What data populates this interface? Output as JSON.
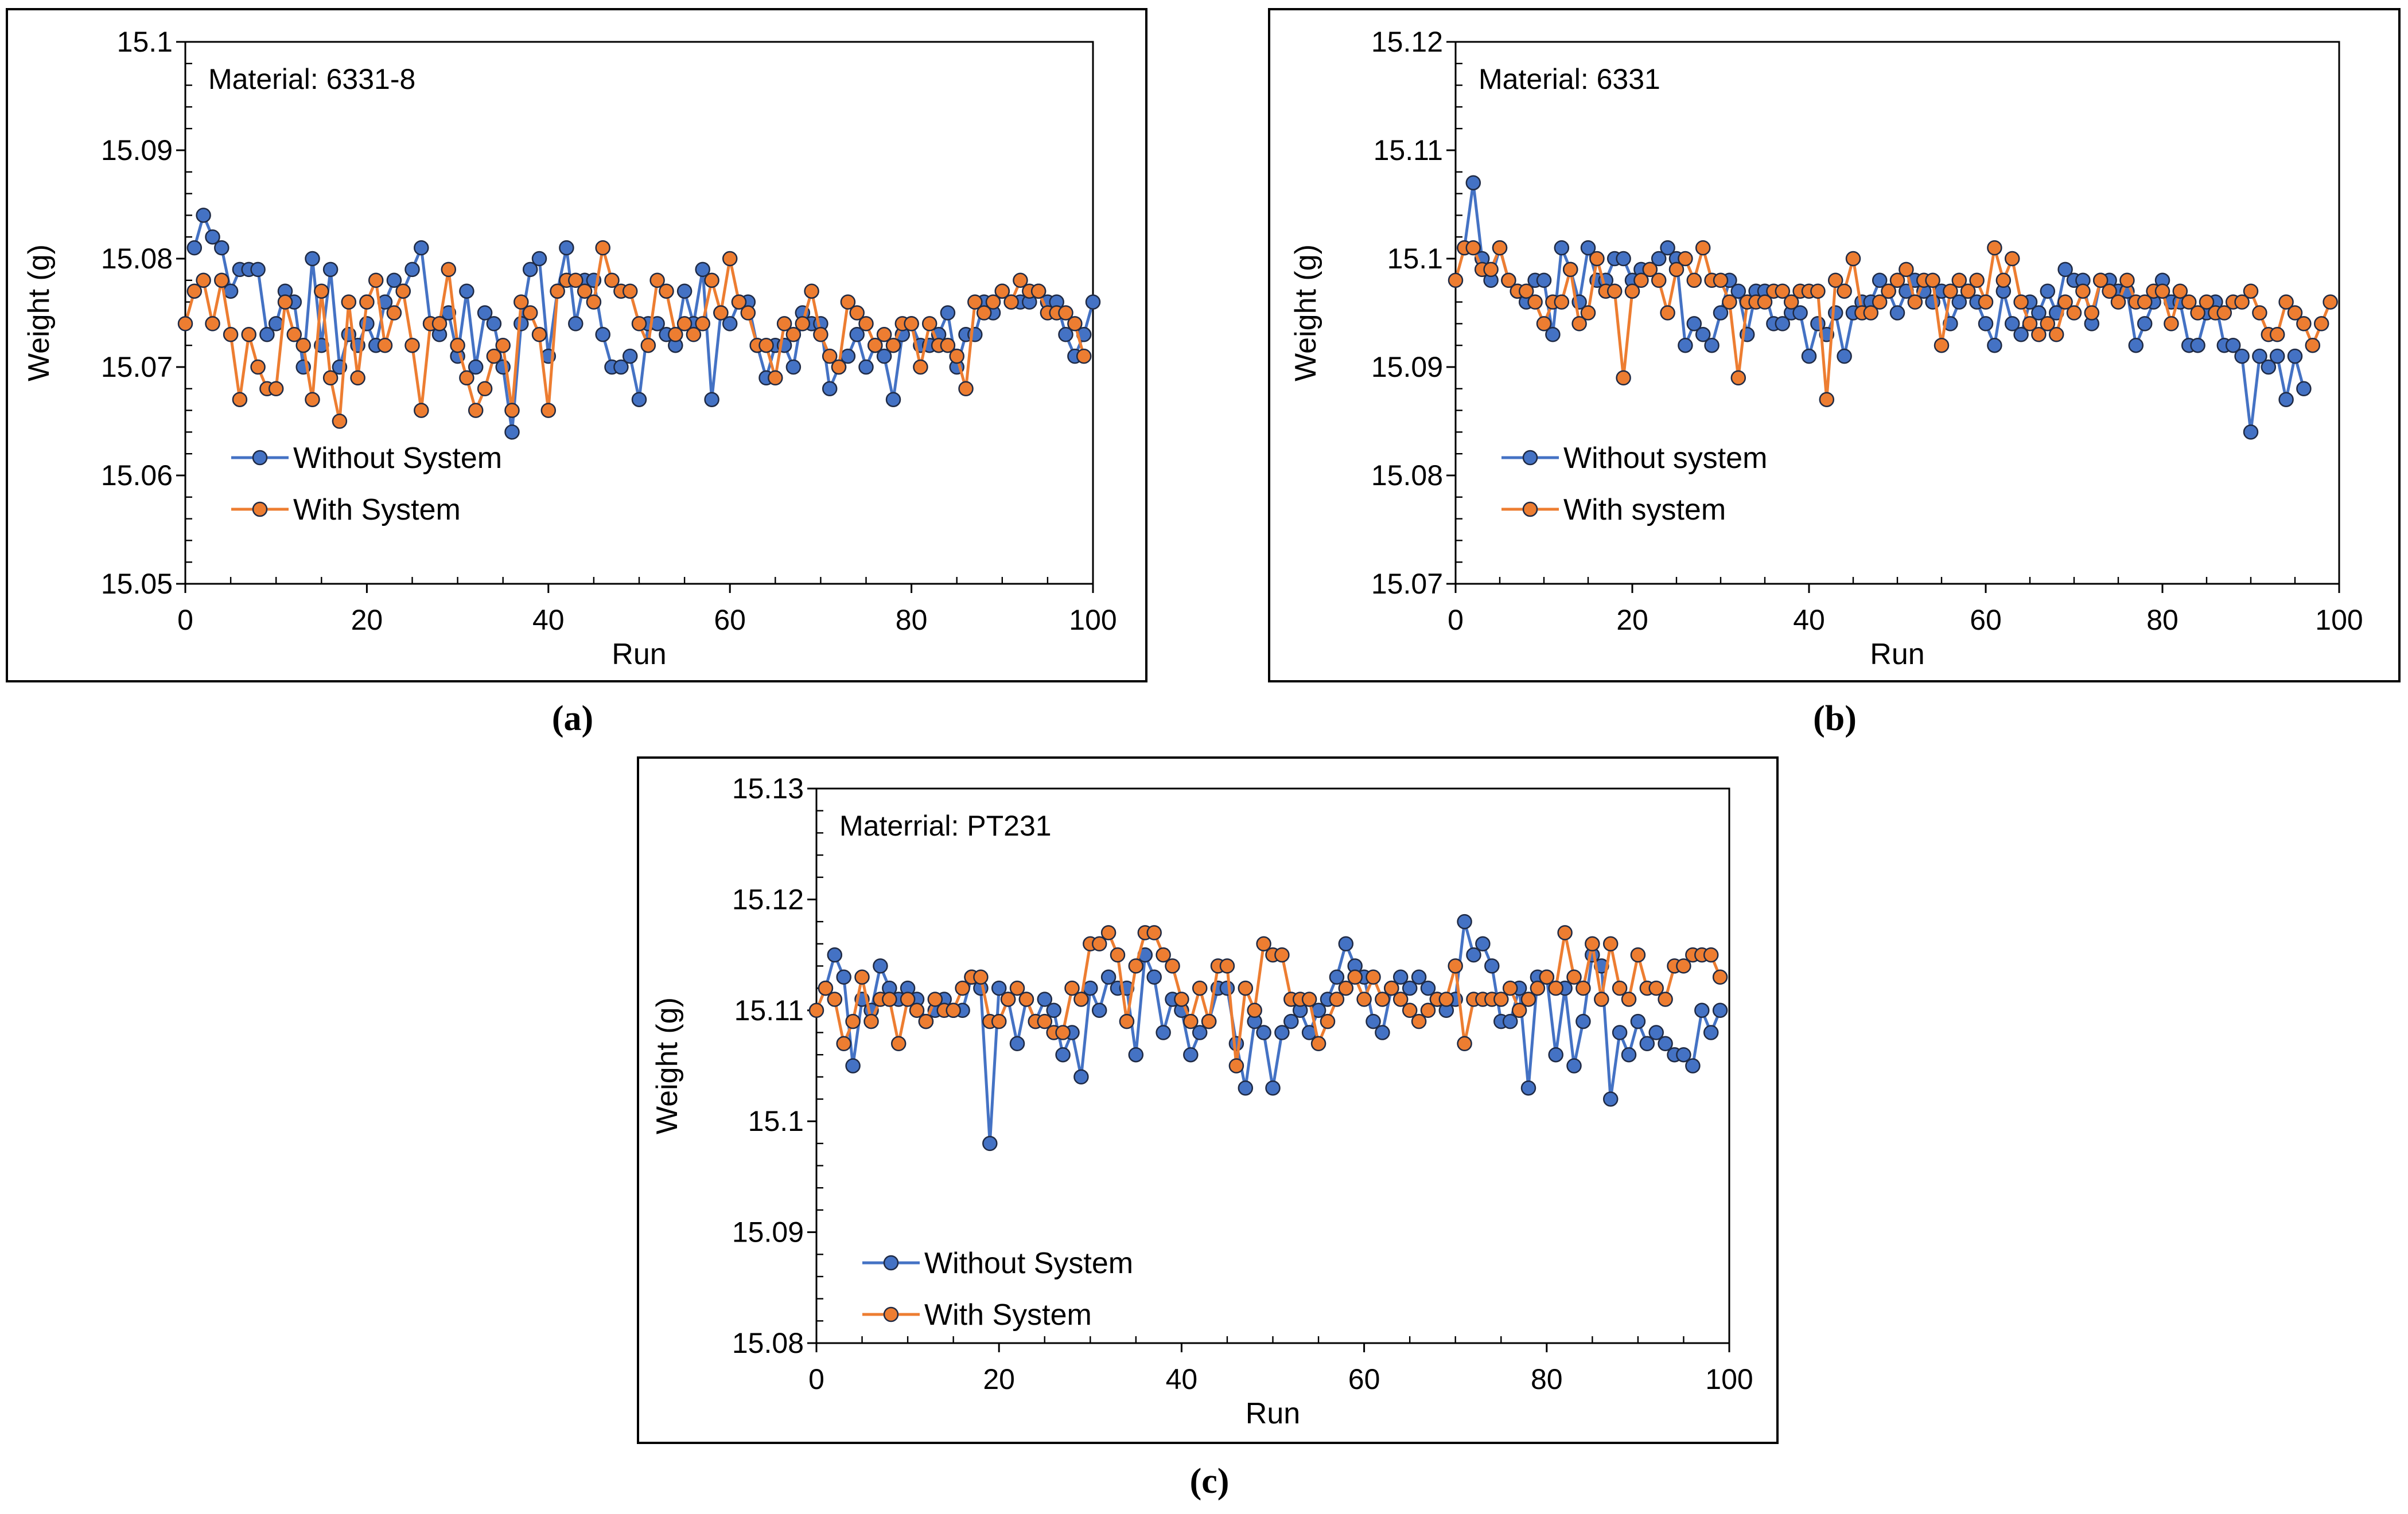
{
  "captions": [
    "(a)",
    "(b)",
    "(c)"
  ],
  "colors": {
    "without": "#4472C4",
    "with": "#ED7D31",
    "marker_edge": "#1F2A44"
  },
  "chart_data": [
    {
      "type": "line",
      "annotation": "Material: 6331-8",
      "xlabel": "Run",
      "ylabel": "Weight (g)",
      "xlim": [
        0,
        100
      ],
      "ylim": [
        15.05,
        15.1
      ],
      "xticks": [
        0,
        20,
        40,
        60,
        80,
        100
      ],
      "xtick_labels": [
        "0",
        "20",
        "40",
        "60",
        "80",
        "100"
      ],
      "yticks": [
        15.05,
        15.06,
        15.07,
        15.08,
        15.09,
        15.1
      ],
      "ytick_labels": [
        "15.05",
        "15.06",
        "15.07",
        "15.08",
        "15.09",
        "15.1"
      ],
      "legend_position": "bottom-left",
      "series": [
        {
          "name": "Without System",
          "color": "#4472C4",
          "x_start": 1,
          "values": [
            15.081,
            15.084,
            15.082,
            15.081,
            15.077,
            15.079,
            15.079,
            15.079,
            15.073,
            15.074,
            15.077,
            15.076,
            15.07,
            15.08,
            15.072,
            15.079,
            15.07,
            15.073,
            15.072,
            15.074,
            15.072,
            15.076,
            15.078,
            15.077,
            15.079,
            15.081,
            15.074,
            15.073,
            15.075,
            15.071,
            15.077,
            15.07,
            15.075,
            15.074,
            15.07,
            15.064,
            15.074,
            15.079,
            15.08,
            15.071,
            15.077,
            15.081,
            15.074,
            15.078,
            15.078,
            15.073,
            15.07,
            15.07,
            15.071,
            15.067,
            15.074,
            15.074,
            15.073,
            15.072,
            15.077,
            15.074,
            15.079,
            15.067,
            15.075,
            15.074,
            15.076,
            15.076,
            15.072,
            15.069,
            15.072,
            15.072,
            15.07,
            15.075,
            15.074,
            15.074,
            15.068,
            15.07,
            15.071,
            15.073,
            15.07,
            15.072,
            15.071,
            15.067,
            15.073,
            15.074,
            15.072,
            15.072,
            15.073,
            15.075,
            15.07,
            15.073,
            15.073,
            15.076,
            15.075,
            15.077,
            15.076,
            15.076,
            15.076,
            15.077,
            15.076,
            15.076,
            15.073,
            15.071,
            15.073,
            15.076
          ]
        },
        {
          "name": "With System",
          "color": "#ED7D31",
          "x_start": 0,
          "values": [
            15.074,
            15.077,
            15.078,
            15.074,
            15.078,
            15.073,
            15.067,
            15.073,
            15.07,
            15.068,
            15.068,
            15.076,
            15.073,
            15.072,
            15.067,
            15.077,
            15.069,
            15.065,
            15.076,
            15.069,
            15.076,
            15.078,
            15.072,
            15.075,
            15.077,
            15.072,
            15.066,
            15.074,
            15.074,
            15.079,
            15.072,
            15.069,
            15.066,
            15.068,
            15.071,
            15.072,
            15.066,
            15.076,
            15.075,
            15.073,
            15.066,
            15.077,
            15.078,
            15.078,
            15.077,
            15.076,
            15.081,
            15.078,
            15.077,
            15.077,
            15.074,
            15.072,
            15.078,
            15.077,
            15.073,
            15.074,
            15.073,
            15.074,
            15.078,
            15.075,
            15.08,
            15.076,
            15.075,
            15.072,
            15.072,
            15.069,
            15.074,
            15.073,
            15.074,
            15.077,
            15.073,
            15.071,
            15.07,
            15.076,
            15.075,
            15.074,
            15.072,
            15.073,
            15.072,
            15.074,
            15.074,
            15.07,
            15.074,
            15.072,
            15.072,
            15.071,
            15.068,
            15.076,
            15.075,
            15.076,
            15.077,
            15.076,
            15.078,
            15.077,
            15.077,
            15.075,
            15.075,
            15.075,
            15.074,
            15.071
          ]
        }
      ]
    },
    {
      "type": "line",
      "annotation": "Material: 6331",
      "xlabel": "Run",
      "ylabel": "Weight (g)",
      "xlim": [
        0,
        100
      ],
      "ylim": [
        15.07,
        15.12
      ],
      "xticks": [
        0,
        20,
        40,
        60,
        80,
        100
      ],
      "xtick_labels": [
        "0",
        "20",
        "40",
        "60",
        "80",
        "100"
      ],
      "yticks": [
        15.07,
        15.08,
        15.09,
        15.1,
        15.11,
        15.12
      ],
      "ytick_labels": [
        "15.07",
        "15.08",
        "15.09",
        "15.1",
        "15.11",
        "15.12"
      ],
      "legend_position": "bottom-left",
      "series": [
        {
          "name": "Without system",
          "color": "#4472C4",
          "x_start": 1,
          "values": [
            15.101,
            15.107,
            15.1,
            15.098,
            15.101,
            15.098,
            15.097,
            15.096,
            15.098,
            15.098,
            15.093,
            15.101,
            15.099,
            15.096,
            15.101,
            15.098,
            15.098,
            15.1,
            15.1,
            15.098,
            15.099,
            15.099,
            15.1,
            15.101,
            15.1,
            15.092,
            15.094,
            15.093,
            15.092,
            15.095,
            15.098,
            15.097,
            15.093,
            15.097,
            15.097,
            15.094,
            15.094,
            15.095,
            15.095,
            15.091,
            15.094,
            15.093,
            15.095,
            15.091,
            15.095,
            15.096,
            15.096,
            15.098,
            15.097,
            15.095,
            15.097,
            15.098,
            15.097,
            15.096,
            15.097,
            15.094,
            15.096,
            15.097,
            15.096,
            15.094,
            15.092,
            15.097,
            15.094,
            15.093,
            15.096,
            15.095,
            15.097,
            15.095,
            15.099,
            15.098,
            15.098,
            15.094,
            15.098,
            15.098,
            15.097,
            15.097,
            15.092,
            15.094,
            15.096,
            15.098,
            15.096,
            15.096,
            15.092,
            15.092,
            15.095,
            15.096,
            15.092,
            15.092,
            15.091,
            15.084,
            15.091,
            15.09,
            15.091,
            15.087,
            15.091,
            15.088
          ]
        },
        {
          "name": "With system",
          "color": "#ED7D31",
          "x_start": 0,
          "values": [
            15.098,
            15.101,
            15.101,
            15.099,
            15.099,
            15.101,
            15.098,
            15.097,
            15.097,
            15.096,
            15.094,
            15.096,
            15.096,
            15.099,
            15.094,
            15.095,
            15.1,
            15.097,
            15.097,
            15.089,
            15.097,
            15.098,
            15.099,
            15.098,
            15.095,
            15.099,
            15.1,
            15.098,
            15.101,
            15.098,
            15.098,
            15.096,
            15.089,
            15.096,
            15.096,
            15.096,
            15.097,
            15.097,
            15.096,
            15.097,
            15.097,
            15.097,
            15.087,
            15.098,
            15.097,
            15.1,
            15.095,
            15.095,
            15.096,
            15.097,
            15.098,
            15.099,
            15.096,
            15.098,
            15.098,
            15.092,
            15.097,
            15.098,
            15.097,
            15.098,
            15.096,
            15.101,
            15.098,
            15.1,
            15.096,
            15.094,
            15.093,
            15.094,
            15.093,
            15.096,
            15.095,
            15.097,
            15.095,
            15.098,
            15.097,
            15.096,
            15.098,
            15.096,
            15.096,
            15.097,
            15.097,
            15.094,
            15.097,
            15.096,
            15.095,
            15.096,
            15.095,
            15.095,
            15.096,
            15.096,
            15.097,
            15.095,
            15.093,
            15.093,
            15.096,
            15.095,
            15.094,
            15.092,
            15.094,
            15.096
          ]
        }
      ]
    },
    {
      "type": "line",
      "annotation": "Materrial: PT231",
      "xlabel": "Run",
      "ylabel": "Weight (g)",
      "xlim": [
        0,
        100
      ],
      "ylim": [
        15.08,
        15.13
      ],
      "xticks": [
        0,
        20,
        40,
        60,
        80,
        100
      ],
      "xtick_labels": [
        "0",
        "20",
        "40",
        "60",
        "80",
        "100"
      ],
      "yticks": [
        15.08,
        15.09,
        15.1,
        15.11,
        15.12,
        15.13
      ],
      "ytick_labels": [
        "15.08",
        "15.09",
        "15.1",
        "15.11",
        "15.12",
        "15.13"
      ],
      "legend_position": "bottom-left",
      "series": [
        {
          "name": "Without System",
          "color": "#4472C4",
          "x_start": 1,
          "values": [
            15.112,
            15.115,
            15.113,
            15.105,
            15.111,
            15.11,
            15.114,
            15.112,
            15.111,
            15.112,
            15.111,
            15.109,
            15.11,
            15.111,
            15.11,
            15.11,
            15.113,
            15.112,
            15.098,
            15.112,
            15.111,
            15.107,
            15.111,
            15.109,
            15.111,
            15.11,
            15.106,
            15.108,
            15.104,
            15.112,
            15.11,
            15.113,
            15.112,
            15.112,
            15.106,
            15.115,
            15.113,
            15.108,
            15.111,
            15.11,
            15.106,
            15.108,
            15.109,
            15.112,
            15.112,
            15.107,
            15.103,
            15.109,
            15.108,
            15.103,
            15.108,
            15.109,
            15.11,
            15.108,
            15.11,
            15.111,
            15.113,
            15.116,
            15.114,
            15.113,
            15.109,
            15.108,
            15.112,
            15.113,
            15.112,
            15.113,
            15.112,
            15.111,
            15.11,
            15.111,
            15.118,
            15.115,
            15.116,
            15.114,
            15.109,
            15.109,
            15.112,
            15.103,
            15.113,
            15.113,
            15.106,
            15.112,
            15.105,
            15.109,
            15.115,
            15.114,
            15.102,
            15.108,
            15.106,
            15.109,
            15.107,
            15.108,
            15.107,
            15.106,
            15.106,
            15.105,
            15.11,
            15.108,
            15.11
          ]
        },
        {
          "name": "With System",
          "color": "#ED7D31",
          "x_start": 0,
          "values": [
            15.11,
            15.112,
            15.111,
            15.107,
            15.109,
            15.113,
            15.109,
            15.111,
            15.111,
            15.107,
            15.111,
            15.11,
            15.109,
            15.111,
            15.11,
            15.11,
            15.112,
            15.113,
            15.113,
            15.109,
            15.109,
            15.111,
            15.112,
            15.111,
            15.109,
            15.109,
            15.108,
            15.108,
            15.112,
            15.111,
            15.116,
            15.116,
            15.117,
            15.115,
            15.109,
            15.114,
            15.117,
            15.117,
            15.115,
            15.114,
            15.111,
            15.109,
            15.112,
            15.109,
            15.114,
            15.114,
            15.105,
            15.112,
            15.11,
            15.116,
            15.115,
            15.115,
            15.111,
            15.111,
            15.111,
            15.107,
            15.109,
            15.111,
            15.112,
            15.113,
            15.111,
            15.113,
            15.111,
            15.112,
            15.111,
            15.11,
            15.109,
            15.11,
            15.111,
            15.111,
            15.114,
            15.107,
            15.111,
            15.111,
            15.111,
            15.111,
            15.112,
            15.11,
            15.111,
            15.112,
            15.113,
            15.112,
            15.117,
            15.113,
            15.112,
            15.116,
            15.111,
            15.116,
            15.112,
            15.111,
            15.115,
            15.112,
            15.112,
            15.111,
            15.114,
            15.114,
            15.115,
            15.115,
            15.115,
            15.113
          ]
        }
      ]
    }
  ]
}
